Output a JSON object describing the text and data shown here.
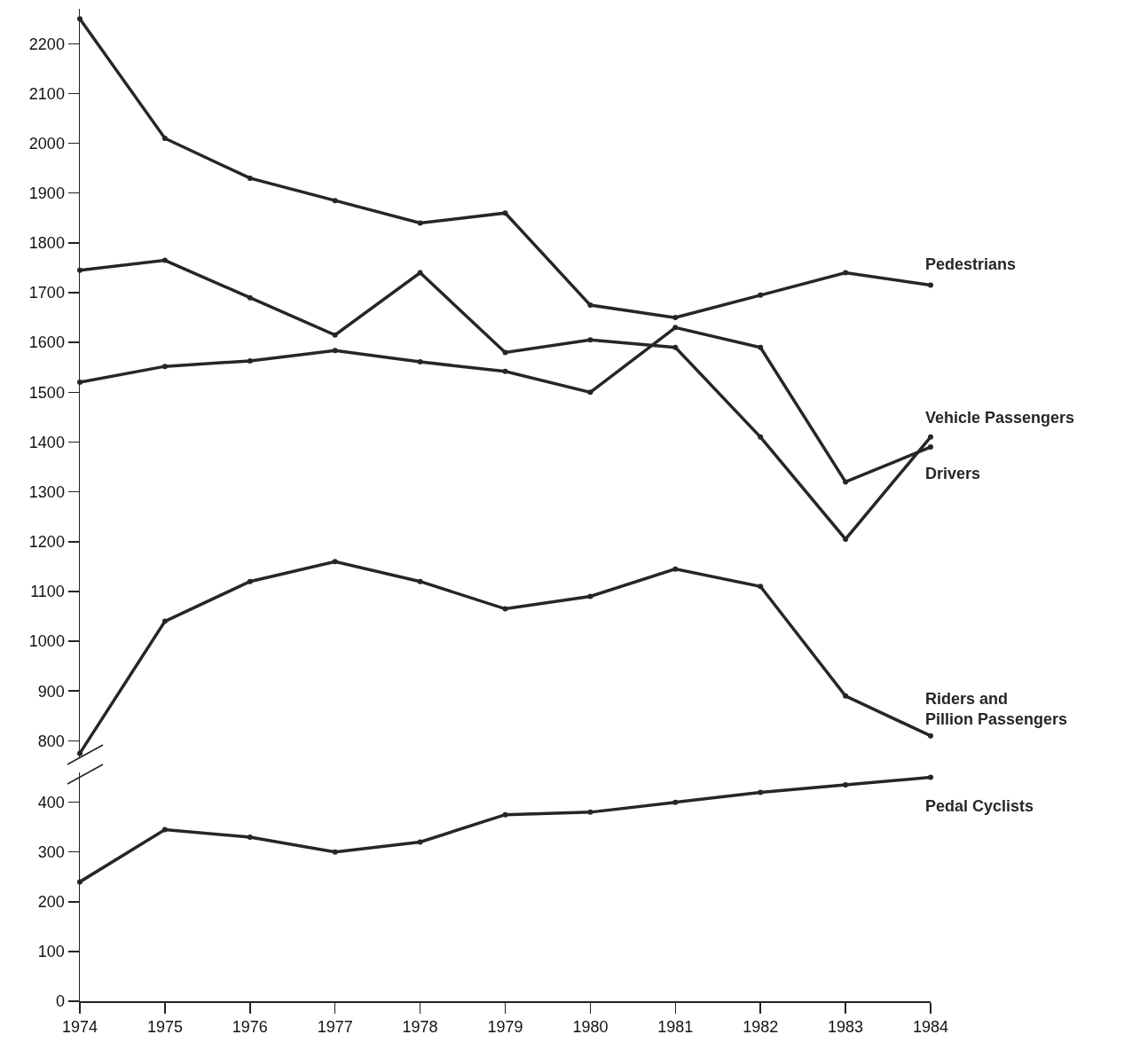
{
  "chart_data": [
    {
      "type": "line",
      "x": [
        1974,
        1975,
        1976,
        1977,
        1978,
        1979,
        1980,
        1981,
        1982,
        1983,
        1984
      ],
      "xlim": [
        1974,
        1984
      ],
      "ylim": [
        765,
        2270
      ],
      "yticks": [
        800,
        900,
        1000,
        1100,
        1200,
        1300,
        1400,
        1500,
        1600,
        1700,
        1800,
        1900,
        2000,
        2100,
        2200
      ],
      "tick_labels": "y",
      "grid": false,
      "legend": false,
      "marker": "circle",
      "line_style": "solid",
      "series": [
        {
          "name": "Pedestrians",
          "color": "#262626",
          "values": [
            2250,
            2010,
            1930,
            1885,
            1840,
            1860,
            1675,
            1650,
            1695,
            1740,
            1715
          ]
        },
        {
          "name": "Vehicle Passengers",
          "color": "#262626",
          "values": [
            1745,
            1765,
            1690,
            1615,
            1740,
            1580,
            1605,
            1590,
            1410,
            1205,
            1410
          ]
        },
        {
          "name": "Drivers",
          "color": "#262626",
          "values": [
            1520,
            1552,
            1563,
            1584,
            1561,
            1542,
            1500,
            1630,
            1590,
            1320,
            1390
          ]
        },
        {
          "name": "Riders and Pillion Passengers",
          "color": "#262626",
          "values": [
            775,
            1040,
            1120,
            1160,
            1120,
            1065,
            1090,
            1145,
            1110,
            890,
            810
          ]
        }
      ]
    },
    {
      "type": "line",
      "x": [
        1974,
        1975,
        1976,
        1977,
        1978,
        1979,
        1980,
        1981,
        1982,
        1983,
        1984
      ],
      "xlim": [
        1974,
        1984
      ],
      "xticks": [
        1974,
        1975,
        1976,
        1977,
        1978,
        1979,
        1980,
        1981,
        1982,
        1983,
        1984
      ],
      "ylim": [
        0,
        460
      ],
      "yticks": [
        0,
        100,
        200,
        300,
        400
      ],
      "grid": false,
      "legend": false,
      "marker": "circle",
      "line_style": "solid",
      "series": [
        {
          "name": "Pedal Cyclists",
          "color": "#262626",
          "values": [
            240,
            345,
            330,
            300,
            320,
            375,
            380,
            400,
            420,
            435,
            450
          ]
        }
      ]
    }
  ]
}
